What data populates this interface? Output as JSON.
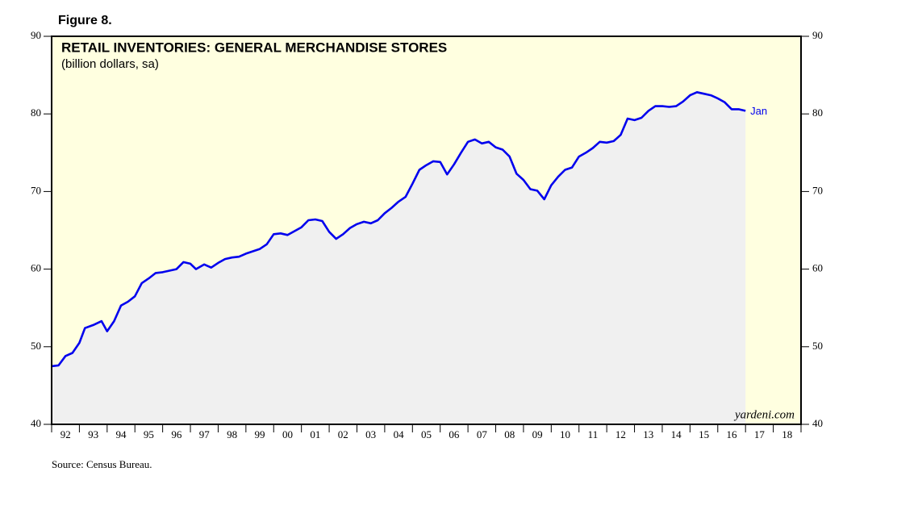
{
  "chart_data": {
    "type": "line",
    "figure_label": "Figure 8.",
    "title": "RETAIL INVENTORIES: GENERAL MERCHANDISE STORES",
    "subtitle": "(billion dollars, sa)",
    "source": "Source: Census Bureau.",
    "watermark": "yardeni.com",
    "end_label": "Jan",
    "x": [
      1992.0,
      1992.25,
      1992.5,
      1992.75,
      1993.0,
      1993.2,
      1993.5,
      1993.8,
      1994.0,
      1994.25,
      1994.5,
      1994.75,
      1995.0,
      1995.25,
      1995.5,
      1995.75,
      1996.0,
      1996.5,
      1996.75,
      1997.0,
      1997.2,
      1997.5,
      1997.75,
      1998.0,
      1998.25,
      1998.5,
      1998.75,
      1999.0,
      1999.25,
      1999.5,
      1999.75,
      2000.0,
      2000.25,
      2000.5,
      2000.75,
      2001.0,
      2001.25,
      2001.5,
      2001.75,
      2002.0,
      2002.25,
      2002.5,
      2002.75,
      2003.0,
      2003.25,
      2003.5,
      2003.75,
      2004.0,
      2004.25,
      2004.5,
      2004.75,
      2005.0,
      2005.25,
      2005.5,
      2005.75,
      2006.0,
      2006.25,
      2006.5,
      2006.75,
      2007.0,
      2007.25,
      2007.5,
      2007.75,
      2008.0,
      2008.25,
      2008.5,
      2008.75,
      2009.0,
      2009.25,
      2009.5,
      2009.75,
      2010.0,
      2010.25,
      2010.5,
      2010.75,
      2011.0,
      2011.25,
      2011.5,
      2011.75,
      2012.0,
      2012.25,
      2012.5,
      2012.75,
      2013.0,
      2013.25,
      2013.5,
      2013.75,
      2014.0,
      2014.25,
      2014.5,
      2014.75,
      2015.0,
      2015.25,
      2015.5,
      2015.75,
      2016.0,
      2016.25,
      2016.5,
      2016.75,
      2017.0
    ],
    "series": [
      {
        "color": "#0000ee",
        "values": [
          47.5,
          47.6,
          48.8,
          49.2,
          50.5,
          52.4,
          52.8,
          53.3,
          52.0,
          53.3,
          55.3,
          55.8,
          56.5,
          58.2,
          58.8,
          59.5,
          59.6,
          60.0,
          60.9,
          60.7,
          60.0,
          60.6,
          60.2,
          60.8,
          61.3,
          61.5,
          61.6,
          62.0,
          62.3,
          62.6,
          63.2,
          64.5,
          64.6,
          64.4,
          64.9,
          65.4,
          66.3,
          66.4,
          66.2,
          64.8,
          63.9,
          64.5,
          65.3,
          65.8,
          66.1,
          65.9,
          66.3,
          67.2,
          67.9,
          68.7,
          69.3,
          71.0,
          72.8,
          73.4,
          73.9,
          73.8,
          72.2,
          73.5,
          75.0,
          76.4,
          76.7,
          76.2,
          76.4,
          75.7,
          75.4,
          74.5,
          72.3,
          71.5,
          70.3,
          70.1,
          69.0,
          70.8,
          71.9,
          72.8,
          73.1,
          74.5,
          75.0,
          75.6,
          76.4,
          76.3,
          76.5,
          77.3,
          79.4,
          79.2,
          79.5,
          80.4,
          81.0,
          81.0,
          80.9,
          81.0,
          81.6,
          82.4,
          82.8,
          82.6,
          82.4,
          82.0,
          81.5,
          80.6,
          80.6,
          80.4
        ]
      }
    ],
    "xlim": [
      1992,
      2019
    ],
    "xticks": [
      {
        "value": 1992.5,
        "label": "92"
      },
      {
        "value": 1993.5,
        "label": "93"
      },
      {
        "value": 1994.5,
        "label": "94"
      },
      {
        "value": 1995.5,
        "label": "95"
      },
      {
        "value": 1996.5,
        "label": "96"
      },
      {
        "value": 1997.5,
        "label": "97"
      },
      {
        "value": 1998.5,
        "label": "98"
      },
      {
        "value": 1999.5,
        "label": "99"
      },
      {
        "value": 2000.5,
        "label": "00"
      },
      {
        "value": 2001.5,
        "label": "01"
      },
      {
        "value": 2002.5,
        "label": "02"
      },
      {
        "value": 2003.5,
        "label": "03"
      },
      {
        "value": 2004.5,
        "label": "04"
      },
      {
        "value": 2005.5,
        "label": "05"
      },
      {
        "value": 2006.5,
        "label": "06"
      },
      {
        "value": 2007.5,
        "label": "07"
      },
      {
        "value": 2008.5,
        "label": "08"
      },
      {
        "value": 2009.5,
        "label": "09"
      },
      {
        "value": 2010.5,
        "label": "10"
      },
      {
        "value": 2011.5,
        "label": "11"
      },
      {
        "value": 2012.5,
        "label": "12"
      },
      {
        "value": 2013.5,
        "label": "13"
      },
      {
        "value": 2014.5,
        "label": "14"
      },
      {
        "value": 2015.5,
        "label": "15"
      },
      {
        "value": 2016.5,
        "label": "16"
      },
      {
        "value": 2017.5,
        "label": "17"
      },
      {
        "value": 2018.5,
        "label": "18"
      }
    ],
    "ylim": [
      40,
      90
    ],
    "yticks": [
      40,
      50,
      60,
      70,
      80,
      90
    ],
    "y2lim": [
      40,
      90
    ],
    "y2ticks": [
      40,
      50,
      60,
      70,
      80,
      90
    ],
    "background": "#ffffe0",
    "area_color": "#f0f0f0"
  }
}
